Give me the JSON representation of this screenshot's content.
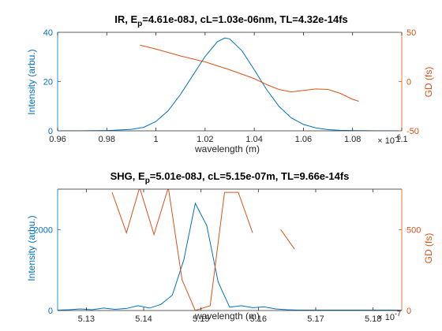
{
  "figure": {
    "background": "#ffffff",
    "axis_color": "#262626",
    "left_color": "#0072bd",
    "right_color": "#d95319"
  },
  "chart_data": [
    {
      "type": "line",
      "title": {
        "pre": "IR, E",
        "sub": "p",
        "post": "=4.61e-08J, cL=1.03e-06nm, TL=4.32e-14fs"
      },
      "xlabel": "wavelength (m)",
      "xexp_base": "× 10",
      "xexp_power": "-6",
      "x_scale": 1e-06,
      "xlim": [
        0.96,
        1.1
      ],
      "xticks": [
        "0.96",
        "0.98",
        "1",
        "1.02",
        "1.04",
        "1.06",
        "1.08",
        "1.1"
      ],
      "y_left": {
        "label": "Intensity (arbu.)",
        "lim": [
          0,
          40
        ],
        "ticks": [
          "0",
          "20",
          "40"
        ],
        "color": "#0072bd"
      },
      "y_right": {
        "label": "GD (fs)",
        "lim": [
          -50,
          50
        ],
        "ticks": [
          "-50",
          "0",
          "50"
        ],
        "color": "#d95319"
      },
      "series": [
        {
          "axis": "left",
          "color": "#0072bd",
          "x": [
            0.96,
            0.97,
            0.98,
            0.99,
            0.995,
            1.0,
            1.005,
            1.01,
            1.015,
            1.02,
            1.025,
            1.028,
            1.03,
            1.035,
            1.04,
            1.045,
            1.05,
            1.055,
            1.06,
            1.065,
            1.07,
            1.075,
            1.08,
            1.09,
            1.1
          ],
          "y": [
            0,
            0,
            0.1,
            0.6,
            1.4,
            3.8,
            8.2,
            14.8,
            22.5,
            30.2,
            36.2,
            37.7,
            37.3,
            32.5,
            24.8,
            16.8,
            10.0,
            5.3,
            2.6,
            1.2,
            0.5,
            0.2,
            0.08,
            0,
            0
          ]
        },
        {
          "axis": "right",
          "color": "#d95319",
          "x": [
            0.9935,
            1.0,
            1.01,
            1.02,
            1.03,
            1.04,
            1.045,
            1.05,
            1.055,
            1.06,
            1.065,
            1.07,
            1.075,
            1.08,
            1.0825
          ],
          "y": [
            37,
            33,
            26,
            20,
            12,
            3,
            -3,
            -8,
            -10.5,
            -9,
            -7.5,
            -8,
            -12,
            -18,
            -20
          ]
        }
      ]
    },
    {
      "type": "line",
      "title": {
        "pre": "SHG, E",
        "sub": "p",
        "post": "=5.01e-08J, cL=5.15e-07m, TL=9.66e-14fs"
      },
      "xlabel": "wavelength (m)",
      "xexp_base": "× 10",
      "xexp_power": "-7",
      "x_scale": 1e-07,
      "xlim": [
        5.125,
        5.185
      ],
      "xticks": [
        "5.13",
        "5.14",
        "5.15",
        "5.16",
        "5.17",
        "5.18"
      ],
      "y_left": {
        "label": "Intensity (arbu.)",
        "lim": [
          0,
          3000
        ],
        "ticks": [
          "0",
          "2000"
        ],
        "color": "#0072bd"
      },
      "y_right": {
        "label": "GD (fs)",
        "lim": [
          0,
          750
        ],
        "ticks": [
          "0",
          "500"
        ],
        "color": "#d95319"
      },
      "series": [
        {
          "axis": "left",
          "color": "#0072bd",
          "x": [
            5.125,
            5.127,
            5.129,
            5.131,
            5.133,
            5.135,
            5.137,
            5.139,
            5.141,
            5.143,
            5.145,
            5.147,
            5.149,
            5.151,
            5.153,
            5.155,
            5.157,
            5.159,
            5.161,
            5.163,
            5.165,
            5.167,
            5.169,
            5.171,
            5.173,
            5.175,
            5.177,
            5.179,
            5.181,
            5.183,
            5.185
          ],
          "y": [
            10,
            20,
            40,
            20,
            60,
            30,
            50,
            120,
            60,
            150,
            380,
            1250,
            2650,
            2100,
            700,
            80,
            120,
            70,
            90,
            40,
            20,
            10,
            10,
            10,
            10,
            10,
            10,
            10,
            10,
            10,
            10
          ]
        },
        {
          "axis": "right",
          "color": "#d95319",
          "x": [
            5.1345,
            5.137,
            5.1393,
            5.1418,
            5.1443,
            5.1467,
            5.149,
            5.1516,
            5.1541,
            5.1565,
            5.159,
            5.1615,
            5.1639,
            5.1663
          ],
          "y": [
            730,
            480,
            760,
            470,
            760,
            190,
            0,
            30,
            730,
            730,
            480,
            null,
            500,
            380
          ]
        }
      ]
    }
  ]
}
